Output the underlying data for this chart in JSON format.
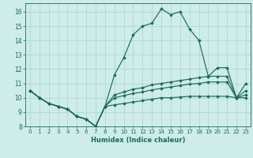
{
  "xlabel": "Humidex (Indice chaleur)",
  "ylabel": "",
  "xlim": [
    -0.5,
    23.5
  ],
  "ylim": [
    8,
    16.6
  ],
  "yticks": [
    8,
    9,
    10,
    11,
    12,
    13,
    14,
    15,
    16
  ],
  "xticks": [
    0,
    1,
    2,
    3,
    4,
    5,
    6,
    7,
    8,
    9,
    10,
    11,
    12,
    13,
    14,
    15,
    16,
    17,
    18,
    19,
    20,
    21,
    22,
    23
  ],
  "bg_color": "#ceecea",
  "grid_color": "#a8d4d0",
  "line_color": "#1a6b5e",
  "series": [
    [
      10.5,
      10.0,
      9.6,
      9.4,
      9.2,
      8.7,
      8.5,
      8.0,
      9.4,
      11.6,
      12.8,
      14.4,
      15.0,
      15.2,
      16.2,
      15.8,
      16.0,
      14.8,
      14.0,
      11.5,
      12.1,
      12.1,
      10.0,
      11.0
    ],
    [
      10.5,
      10.0,
      9.6,
      9.4,
      9.2,
      8.7,
      8.5,
      8.0,
      9.4,
      10.2,
      10.4,
      10.6,
      10.7,
      10.9,
      11.0,
      11.1,
      11.2,
      11.3,
      11.4,
      11.5,
      11.5,
      11.5,
      10.0,
      10.5
    ],
    [
      10.5,
      10.0,
      9.6,
      9.4,
      9.2,
      8.7,
      8.5,
      8.0,
      9.4,
      10.0,
      10.15,
      10.3,
      10.4,
      10.55,
      10.65,
      10.75,
      10.85,
      10.95,
      11.0,
      11.1,
      11.1,
      11.1,
      10.0,
      10.2
    ],
    [
      10.5,
      10.0,
      9.6,
      9.4,
      9.2,
      8.7,
      8.5,
      8.0,
      9.4,
      9.5,
      9.6,
      9.7,
      9.8,
      9.9,
      10.0,
      10.0,
      10.05,
      10.1,
      10.1,
      10.1,
      10.1,
      10.1,
      10.0,
      10.0
    ]
  ]
}
